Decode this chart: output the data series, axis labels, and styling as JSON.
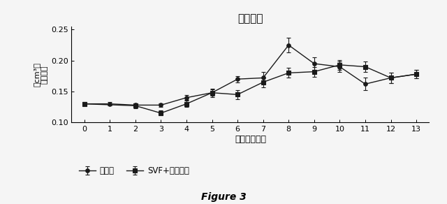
{
  "title": "脚部体積",
  "xlabel": "時間（日数）",
  "ylabel_top": "（cm³）",
  "ylabel_bottom": "脚部体積",
  "x": [
    0,
    1,
    2,
    3,
    4,
    5,
    6,
    7,
    8,
    9,
    10,
    11,
    12,
    13
  ],
  "series1_name": "賦形剤",
  "series1_y": [
    0.13,
    0.13,
    0.128,
    0.128,
    0.14,
    0.148,
    0.17,
    0.172,
    0.225,
    0.195,
    0.19,
    0.162,
    0.172,
    0.178
  ],
  "series1_yerr": [
    0.003,
    0.003,
    0.003,
    0.003,
    0.004,
    0.005,
    0.005,
    0.01,
    0.012,
    0.01,
    0.008,
    0.01,
    0.008,
    0.007
  ],
  "series2_name": "SVF+脂肪細胞",
  "series2_y": [
    0.13,
    null,
    0.127,
    0.115,
    0.13,
    0.148,
    0.145,
    0.165,
    0.18,
    0.182,
    0.193,
    0.19,
    0.172,
    0.178
  ],
  "series2_yerr": [
    0.003,
    null,
    0.004,
    0.004,
    0.005,
    0.007,
    0.007,
    0.008,
    0.008,
    0.008,
    0.008,
    0.008,
    0.008,
    0.007
  ],
  "ylim": [
    0.1,
    0.255
  ],
  "yticks": [
    0.1,
    0.15,
    0.2,
    0.25
  ],
  "xlim": [
    -0.5,
    13.5
  ],
  "xticks": [
    0,
    1,
    2,
    3,
    4,
    5,
    6,
    7,
    8,
    9,
    10,
    11,
    12,
    13
  ],
  "figure_caption": "Figure 3",
  "marker1": "o",
  "marker2": "s",
  "line_color": "#1a1a1a",
  "bg_color": "#f5f5f5"
}
